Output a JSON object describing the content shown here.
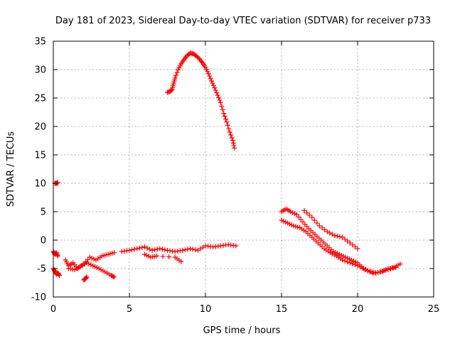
{
  "chart_data": {
    "type": "scatter",
    "title": "Day 181 of 2023, Sidereal Day-to-day VTEC variation (SDTVAR) for receiver p733",
    "xlabel": "GPS time / hours",
    "ylabel": "SDTVAR / TECUs",
    "xlim": [
      0,
      25
    ],
    "ylim": [
      -10,
      35
    ],
    "xticks": [
      0,
      5,
      10,
      15,
      20,
      25
    ],
    "yticks": [
      -10,
      -5,
      0,
      5,
      10,
      15,
      20,
      25,
      30,
      35
    ],
    "grid": true,
    "marker": "plus",
    "color": "#ff0000",
    "series": [
      {
        "name": "segment-early-low",
        "x": [
          0.0,
          0.1,
          0.2,
          0.3,
          0.4
        ],
        "y": [
          -5.0,
          -5.5,
          -6.0,
          -5.8,
          -6.2
        ]
      },
      {
        "name": "segment-early-mid",
        "x": [
          0.0,
          0.1,
          0.2,
          0.3
        ],
        "y": [
          -2.0,
          -2.5,
          -2.2,
          -2.8
        ]
      },
      {
        "name": "segment-early-high",
        "x": [
          0.1,
          0.2,
          0.3
        ],
        "y": [
          10.0,
          10.0,
          10.1
        ]
      },
      {
        "name": "segment-morning-a",
        "x": [
          0.8,
          1.0,
          1.3,
          1.6,
          2.0,
          2.4,
          2.8,
          3.2,
          3.6,
          4.0
        ],
        "y": [
          -3.5,
          -4.5,
          -4.0,
          -5.0,
          -4.2,
          -3.0,
          -3.5,
          -2.8,
          -2.5,
          -2.2
        ]
      },
      {
        "name": "segment-morning-b",
        "x": [
          1.0,
          1.4,
          1.8,
          2.2,
          2.6,
          3.0,
          3.4,
          3.8,
          4.0
        ],
        "y": [
          -5.0,
          -5.2,
          -4.6,
          -4.0,
          -4.5,
          -5.0,
          -5.6,
          -6.2,
          -6.5
        ]
      },
      {
        "name": "segment-morning-c",
        "x": [
          2.0,
          2.1,
          2.2
        ],
        "y": [
          -7.0,
          -6.8,
          -6.5
        ]
      },
      {
        "name": "segment-day",
        "x": [
          4.5,
          5.0,
          5.5,
          6.0,
          6.5,
          7.0,
          7.5,
          8.0,
          8.5,
          9.0,
          9.5,
          10.0,
          10.5,
          11.0,
          11.5,
          12.0
        ],
        "y": [
          -2.0,
          -1.8,
          -1.5,
          -1.2,
          -1.8,
          -1.5,
          -1.8,
          -2.0,
          -1.8,
          -1.5,
          -1.8,
          -1.0,
          -1.2,
          -1.0,
          -0.8,
          -1.0
        ]
      },
      {
        "name": "segment-day-low",
        "x": [
          6.0,
          6.4,
          6.8,
          8.0,
          8.4
        ],
        "y": [
          -2.5,
          -3.0,
          -2.8,
          -3.0,
          -3.8
        ]
      },
      {
        "name": "segment-arc",
        "x": [
          7.5,
          7.7,
          7.8,
          7.9,
          8.0,
          8.2,
          8.4,
          8.6,
          8.8,
          9.0,
          9.2,
          9.4,
          9.6,
          9.8,
          10.0,
          10.2,
          10.4,
          10.6,
          10.8,
          11.0,
          11.2,
          11.4,
          11.6,
          11.8,
          11.9
        ],
        "y": [
          26.0,
          26.2,
          26.5,
          27.5,
          28.5,
          30.0,
          31.0,
          31.8,
          32.5,
          32.9,
          32.8,
          32.4,
          31.9,
          31.2,
          30.4,
          29.3,
          28.0,
          26.8,
          25.5,
          24.2,
          22.3,
          20.8,
          19.0,
          17.5,
          16.2
        ]
      },
      {
        "name": "segment-evening-a",
        "x": [
          15.0,
          15.3,
          15.6,
          16.0,
          16.4,
          16.8,
          17.2,
          17.6,
          18.0,
          18.4,
          18.8,
          19.2,
          19.6,
          20.0,
          20.4,
          20.8,
          21.2,
          21.6,
          22.0,
          22.4,
          22.8
        ],
        "y": [
          5.0,
          5.5,
          5.0,
          4.5,
          3.2,
          2.0,
          1.0,
          0.0,
          -1.0,
          -2.0,
          -2.5,
          -3.0,
          -3.5,
          -4.0,
          -5.0,
          -5.5,
          -5.8,
          -5.5,
          -5.0,
          -4.8,
          -4.2
        ]
      },
      {
        "name": "segment-evening-b",
        "x": [
          15.0,
          15.4,
          15.8,
          16.2,
          16.6,
          17.0,
          17.4,
          17.8,
          18.2,
          18.6,
          19.0,
          19.5,
          20.0,
          20.5,
          21.0,
          21.5,
          22.0,
          22.5
        ],
        "y": [
          3.5,
          3.0,
          2.5,
          2.2,
          1.5,
          0.5,
          -0.5,
          -1.5,
          -2.2,
          -2.8,
          -3.5,
          -4.0,
          -4.5,
          -5.2,
          -5.8,
          -5.6,
          -5.2,
          -4.8
        ]
      },
      {
        "name": "segment-evening-c",
        "x": [
          16.5,
          17.0,
          17.5,
          18.0,
          18.5,
          19.0,
          19.5,
          20.0
        ],
        "y": [
          5.2,
          4.0,
          2.5,
          1.5,
          0.8,
          0.5,
          -0.5,
          -1.5
        ]
      }
    ]
  }
}
